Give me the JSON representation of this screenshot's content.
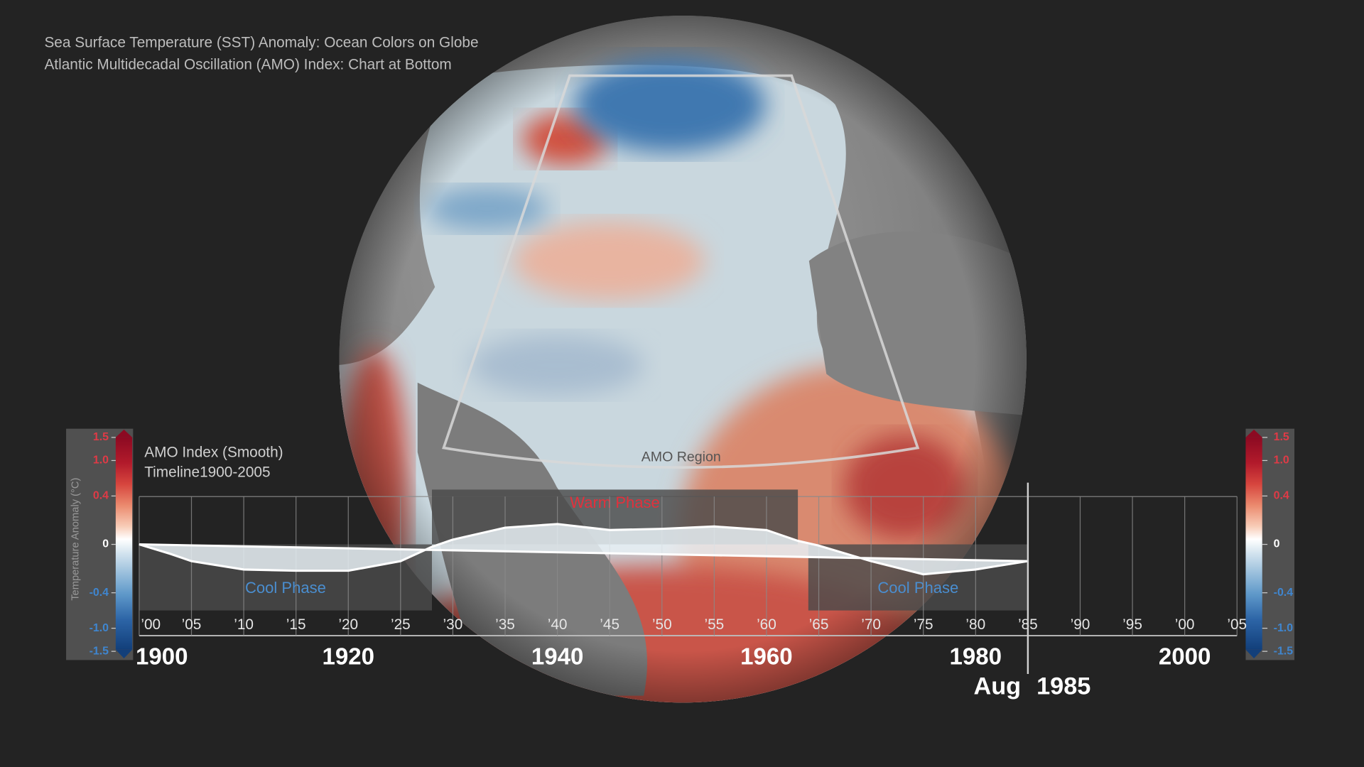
{
  "header": {
    "lines": [
      "Sea Surface Temperature (SST) Anomaly: Ocean Colors on Globe",
      "Atlantic Multidecadal Oscillation (AMO) Index: Chart at Bottom"
    ]
  },
  "globe": {
    "region_label": "AMO Region"
  },
  "colorbar": {
    "label": "Temperature Anomaly (°C)",
    "lim": [
      -1.5,
      1.5
    ],
    "ticks": [
      {
        "value": 1.5,
        "label": "1.5"
      },
      {
        "value": 1,
        "label": "1.0"
      },
      0.4,
      0,
      -0.4,
      {
        "value": -1,
        "label": "-1.0"
      },
      {
        "value": -1.5,
        "label": "-1.5"
      }
    ]
  },
  "chart_data": {
    "type": "area",
    "title": "AMO Index (Smooth)",
    "subtitle": "Timeline1900-2005",
    "x": [
      1900,
      1903,
      1905,
      1910,
      1915,
      1920,
      1925,
      1928,
      1930,
      1935,
      1940,
      1945,
      1950,
      1955,
      1960,
      1963,
      1965,
      1970,
      1975,
      1980,
      1985
    ],
    "values": [
      0,
      -0.08,
      -0.14,
      -0.21,
      -0.22,
      -0.22,
      -0.14,
      -0.02,
      0.04,
      0.14,
      0.17,
      0.12,
      0.13,
      0.15,
      0.12,
      0.03,
      -0.01,
      -0.14,
      -0.25,
      -0.21,
      -0.14
    ],
    "color": "#e8f0f4",
    "xlim": [
      1900,
      2005
    ],
    "ylim": [
      -0.4,
      0.4
    ],
    "xticks": [
      {
        "value": 1900,
        "label": "’00"
      },
      {
        "value": 1905,
        "label": "’05"
      },
      {
        "value": 1910,
        "label": "’10"
      },
      {
        "value": 1915,
        "label": "’15"
      },
      {
        "value": 1920,
        "label": "’20"
      },
      {
        "value": 1925,
        "label": "’25"
      },
      {
        "value": 1930,
        "label": "’30"
      },
      {
        "value": 1935,
        "label": "’35"
      },
      {
        "value": 1940,
        "label": "’40"
      },
      {
        "value": 1945,
        "label": "’45"
      },
      {
        "value": 1950,
        "label": "’50"
      },
      {
        "value": 1955,
        "label": "’55"
      },
      {
        "value": 1960,
        "label": "’60"
      },
      {
        "value": 1965,
        "label": "’65"
      },
      {
        "value": 1970,
        "label": "’70"
      },
      {
        "value": 1975,
        "label": "’75"
      },
      {
        "value": 1980,
        "label": "’80"
      },
      {
        "value": 1985,
        "label": "’85"
      },
      {
        "value": 1990,
        "label": "’90"
      },
      {
        "value": 1995,
        "label": "’95"
      },
      {
        "value": 2000,
        "label": "’00"
      },
      {
        "value": 2005,
        "label": "’05"
      }
    ],
    "xticks_major": [
      1900,
      1920,
      1940,
      1960,
      1980,
      2000
    ],
    "phases": [
      {
        "label": "Cool Phase",
        "start": 1900,
        "end": 1928
      },
      {
        "label": "Warm Phase",
        "start": 1928,
        "end": 1963
      },
      {
        "label": "Cool Phase",
        "start": 1964,
        "end": 1985
      }
    ],
    "current": {
      "month": "Aug",
      "year": 1985
    },
    "grid": true
  }
}
